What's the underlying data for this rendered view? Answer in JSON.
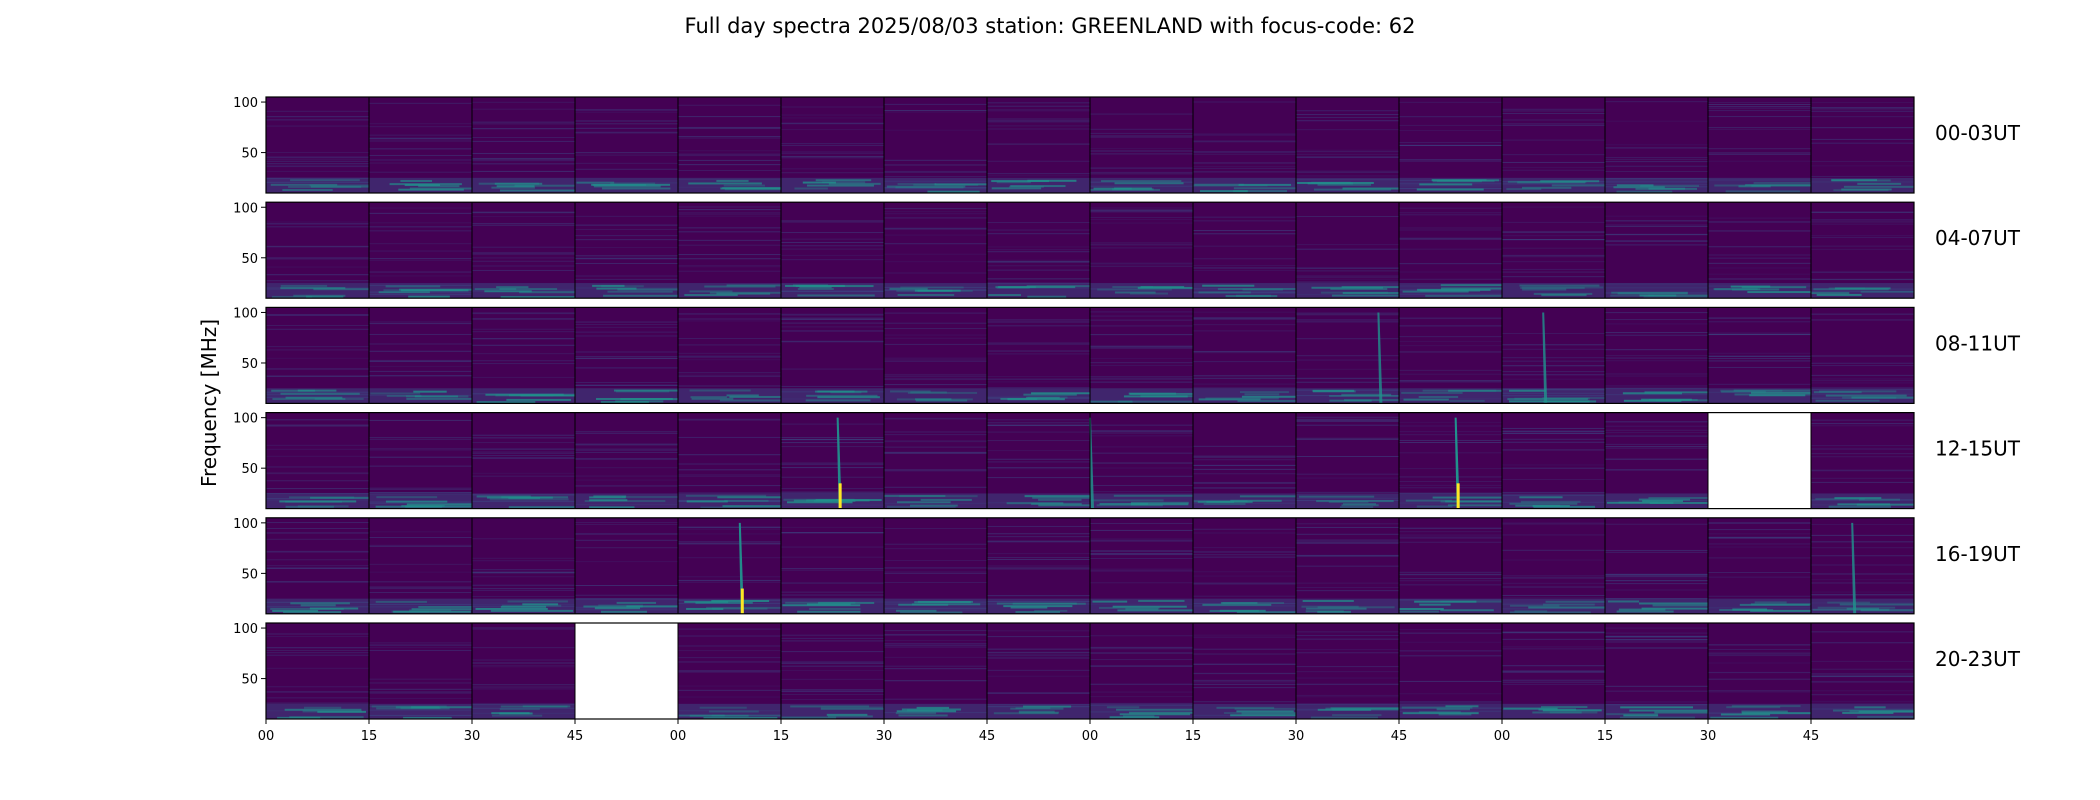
{
  "chart_data": {
    "type": "heatmap",
    "title": "Full day spectra 2025/08/03 station: GREENLAND with focus-code: 62",
    "ylabel": "Frequency [MHz]",
    "xlabel": "",
    "y_ticks": [
      50,
      100
    ],
    "ylim": [
      10,
      105
    ],
    "x_tick_labels": [
      "00",
      "15",
      "30",
      "45",
      "00",
      "15",
      "30",
      "45",
      "00",
      "15",
      "30",
      "45",
      "00",
      "15",
      "30",
      "45"
    ],
    "panels_per_row": 16,
    "panel_minutes": 15,
    "colormap": "viridis",
    "colors": {
      "background": "#440154",
      "mid": "#3b528b",
      "high": "#21918c",
      "peak": "#fde725",
      "missing": "#ffffff"
    },
    "rows": [
      {
        "label": "00-03UT",
        "missing_panels": []
      },
      {
        "label": "04-07UT",
        "missing_panels": []
      },
      {
        "label": "08-11UT",
        "missing_panels": []
      },
      {
        "label": "12-15UT",
        "missing_panels": [
          14
        ]
      },
      {
        "label": "16-19UT",
        "missing_panels": []
      },
      {
        "label": "20-23UT",
        "missing_panels": [
          3
        ]
      }
    ],
    "bursts": [
      {
        "row": 2,
        "panel": 10,
        "position": 0.8,
        "intensity": 0.5
      },
      {
        "row": 2,
        "panel": 12,
        "position": 0.4,
        "intensity": 0.55
      },
      {
        "row": 3,
        "panel": 5,
        "position": 0.55,
        "intensity": 0.85
      },
      {
        "row": 3,
        "panel": 7,
        "position": 1.0,
        "intensity": 0.6
      },
      {
        "row": 3,
        "panel": 11,
        "position": 0.55,
        "intensity": 1.0
      },
      {
        "row": 4,
        "panel": 4,
        "position": 0.6,
        "intensity": 0.9
      },
      {
        "row": 4,
        "panel": 15,
        "position": 0.4,
        "intensity": 0.55
      }
    ]
  }
}
